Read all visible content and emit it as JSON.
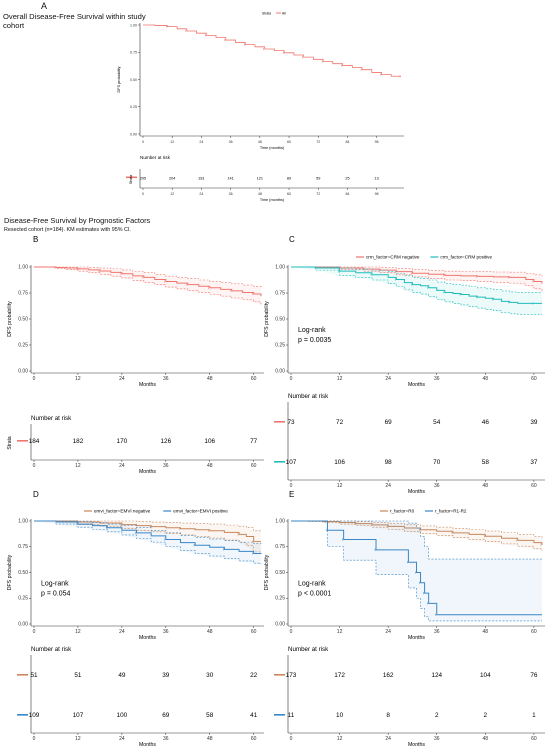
{
  "header": {
    "panel_a_letter": "A",
    "panel_a_title_line1": "Overall Disease-Free Survival within study",
    "panel_a_title_line2": "cohort",
    "section_title": "Disease-Free Survival by Prognostic Factors",
    "section_subtitle": "Resected cohort (n=184). KM estimates with 95% CI."
  },
  "colors": {
    "salmon": "#f0756d",
    "teal": "#1fbcbc",
    "brown": "#c8875e",
    "blue": "#3a86c6",
    "axis": "#333333",
    "grid": "#000000"
  },
  "chart_data": [
    {
      "panel": "A",
      "type": "line",
      "legend_title": "Strata",
      "legend_position": "top",
      "xlabel": "Time (months)",
      "ylabel": "DFS probability",
      "xlim": [
        0,
        106
      ],
      "ylim": [
        0,
        1
      ],
      "xticks": [
        "0",
        "12",
        "24",
        "36",
        "48",
        "60",
        "72",
        "84",
        "96"
      ],
      "yticks": [
        "0.00",
        "0.25",
        "0.50",
        "0.75",
        "1.00"
      ],
      "series": [
        {
          "name": "All",
          "color": "salmon",
          "x": [
            0,
            5,
            10,
            14,
            18,
            22,
            26,
            30,
            34,
            38,
            42,
            46,
            50,
            54,
            58,
            62,
            66,
            70,
            74,
            78,
            82,
            86,
            90,
            94,
            98,
            102,
            106
          ],
          "y": [
            1.0,
            0.995,
            0.985,
            0.965,
            0.945,
            0.925,
            0.905,
            0.885,
            0.862,
            0.84,
            0.82,
            0.8,
            0.78,
            0.765,
            0.745,
            0.725,
            0.705,
            0.685,
            0.665,
            0.645,
            0.628,
            0.61,
            0.59,
            0.565,
            0.545,
            0.53,
            0.53
          ]
        }
      ],
      "risk_table": {
        "title": "Number at risk",
        "ylabel": "Strata",
        "xlabel": "Time (months)",
        "rows": [
          {
            "color": "salmon",
            "values": [
              "205",
              "204",
              "181",
              "141",
              "121",
              "89",
              "59",
              "25",
              "13"
            ]
          }
        ]
      }
    },
    {
      "panel": "B",
      "type": "line",
      "xlabel": "Months",
      "ylabel": "DFS probability",
      "xlim": [
        0,
        62
      ],
      "ylim": [
        0,
        1
      ],
      "xticks": [
        "0",
        "12",
        "24",
        "36",
        "48",
        "60"
      ],
      "yticks": [
        "0.00",
        "0.25",
        "0.50",
        "0.75",
        "1.00"
      ],
      "series": [
        {
          "color": "salmon",
          "x": [
            0,
            3,
            6,
            9,
            12,
            15,
            18,
            21,
            24,
            27,
            30,
            33,
            36,
            39,
            42,
            45,
            48,
            51,
            54,
            57,
            60,
            62
          ],
          "y": [
            1.0,
            1.0,
            0.995,
            0.99,
            0.982,
            0.972,
            0.962,
            0.948,
            0.935,
            0.915,
            0.9,
            0.88,
            0.86,
            0.845,
            0.83,
            0.815,
            0.8,
            0.785,
            0.77,
            0.755,
            0.74,
            0.72
          ],
          "ci_lower": [
            1.0,
            1.0,
            0.985,
            0.975,
            0.96,
            0.945,
            0.93,
            0.912,
            0.895,
            0.872,
            0.852,
            0.83,
            0.807,
            0.79,
            0.772,
            0.755,
            0.738,
            0.72,
            0.702,
            0.685,
            0.665,
            0.64
          ],
          "ci_upper": [
            1.0,
            1.0,
            1.0,
            1.0,
            1.0,
            0.995,
            0.99,
            0.982,
            0.972,
            0.958,
            0.945,
            0.93,
            0.912,
            0.9,
            0.888,
            0.875,
            0.862,
            0.85,
            0.838,
            0.826,
            0.814,
            0.8
          ]
        }
      ],
      "risk_table": {
        "title": "Number at risk",
        "ylabel": "Strata",
        "rows": [
          {
            "color": "salmon",
            "values": [
              "184",
              "182",
              "170",
              "126",
              "106",
              "77"
            ]
          }
        ]
      }
    },
    {
      "panel": "C",
      "type": "line",
      "legend_position": "top",
      "xlabel": "Months",
      "ylabel": "DFS probability",
      "xlim": [
        0,
        62
      ],
      "ylim": [
        0,
        1
      ],
      "xticks": [
        "0",
        "12",
        "24",
        "36",
        "48",
        "60"
      ],
      "yticks": [
        "0.00",
        "0.25",
        "0.50",
        "0.75",
        "1.00"
      ],
      "annotation": [
        "Log-rank",
        "p = 0.0035"
      ],
      "series": [
        {
          "name": "crm_factor=CRM negative",
          "color": "salmon",
          "x": [
            0,
            6,
            12,
            18,
            22,
            26,
            30,
            34,
            38,
            42,
            46,
            50,
            54,
            58,
            60,
            62
          ],
          "y": [
            1.0,
            1.0,
            0.99,
            0.98,
            0.97,
            0.955,
            0.94,
            0.93,
            0.92,
            0.915,
            0.91,
            0.905,
            0.9,
            0.88,
            0.86,
            0.84
          ],
          "ci_lower": [
            1.0,
            0.99,
            0.975,
            0.96,
            0.945,
            0.925,
            0.905,
            0.89,
            0.875,
            0.868,
            0.86,
            0.852,
            0.845,
            0.82,
            0.79,
            0.76
          ],
          "ci_upper": [
            1.0,
            1.0,
            1.0,
            1.0,
            0.995,
            0.985,
            0.975,
            0.968,
            0.96,
            0.958,
            0.955,
            0.952,
            0.95,
            0.94,
            0.925,
            0.91
          ]
        },
        {
          "name": "crm_factor=CRM positive",
          "color": "teal",
          "x": [
            0,
            6,
            12,
            16,
            20,
            24,
            26,
            28,
            30,
            32,
            34,
            36,
            38,
            40,
            42,
            44,
            46,
            48,
            50,
            52,
            54,
            56,
            60,
            62
          ],
          "y": [
            1.0,
            0.99,
            0.96,
            0.945,
            0.925,
            0.9,
            0.88,
            0.85,
            0.83,
            0.82,
            0.8,
            0.775,
            0.755,
            0.745,
            0.735,
            0.72,
            0.71,
            0.7,
            0.69,
            0.67,
            0.66,
            0.65,
            0.65,
            0.65
          ],
          "ci_lower": [
            1.0,
            0.97,
            0.92,
            0.9,
            0.875,
            0.84,
            0.815,
            0.78,
            0.755,
            0.74,
            0.715,
            0.69,
            0.665,
            0.65,
            0.635,
            0.62,
            0.605,
            0.59,
            0.58,
            0.56,
            0.55,
            0.545,
            0.545,
            0.545
          ],
          "ci_upper": [
            1.0,
            1.0,
            0.99,
            0.98,
            0.97,
            0.955,
            0.94,
            0.915,
            0.9,
            0.89,
            0.875,
            0.855,
            0.84,
            0.83,
            0.825,
            0.81,
            0.8,
            0.79,
            0.785,
            0.77,
            0.76,
            0.755,
            0.755,
            0.755
          ]
        }
      ],
      "risk_table": {
        "title": "Number at risk",
        "rows": [
          {
            "color": "salmon",
            "values": [
              "73",
              "72",
              "69",
              "54",
              "46",
              "39"
            ]
          },
          {
            "color": "teal",
            "values": [
              "107",
              "106",
              "98",
              "70",
              "58",
              "37"
            ]
          }
        ]
      }
    },
    {
      "panel": "D",
      "type": "line",
      "legend_position": "top",
      "xlabel": "Months",
      "ylabel": "DFS probability",
      "xlim": [
        0,
        62
      ],
      "ylim": [
        0,
        1
      ],
      "xticks": [
        "0",
        "12",
        "24",
        "36",
        "48",
        "60"
      ],
      "yticks": [
        "0.00",
        "0.25",
        "0.50",
        "0.75",
        "1.00"
      ],
      "annotation": [
        "Log-rank",
        "p = 0.054"
      ],
      "series": [
        {
          "name": "emvi_factor=EMVI negative",
          "color": "brown",
          "x": [
            0,
            6,
            12,
            18,
            24,
            28,
            32,
            36,
            40,
            44,
            48,
            52,
            56,
            58,
            60,
            62
          ],
          "y": [
            1.0,
            1.0,
            0.99,
            0.98,
            0.965,
            0.955,
            0.945,
            0.935,
            0.925,
            0.915,
            0.905,
            0.89,
            0.87,
            0.85,
            0.8,
            0.8
          ],
          "ci_lower": [
            1.0,
            0.99,
            0.965,
            0.95,
            0.925,
            0.91,
            0.895,
            0.88,
            0.865,
            0.85,
            0.835,
            0.815,
            0.79,
            0.76,
            0.7,
            0.7
          ],
          "ci_upper": [
            1.0,
            1.0,
            1.0,
            1.0,
            1.0,
            0.995,
            0.99,
            0.985,
            0.98,
            0.975,
            0.97,
            0.96,
            0.95,
            0.935,
            0.905,
            0.905
          ]
        },
        {
          "name": "emvi_factor=EMVI positive",
          "color": "blue",
          "x": [
            0,
            6,
            12,
            16,
            20,
            24,
            28,
            32,
            36,
            40,
            44,
            48,
            52,
            56,
            60,
            62
          ],
          "y": [
            1.0,
            0.99,
            0.97,
            0.955,
            0.935,
            0.91,
            0.885,
            0.855,
            0.82,
            0.79,
            0.765,
            0.745,
            0.725,
            0.705,
            0.685,
            0.68
          ],
          "ci_lower": [
            1.0,
            0.97,
            0.94,
            0.92,
            0.895,
            0.865,
            0.83,
            0.795,
            0.75,
            0.715,
            0.685,
            0.66,
            0.635,
            0.612,
            0.59,
            0.58
          ],
          "ci_upper": [
            1.0,
            1.0,
            0.995,
            0.985,
            0.97,
            0.955,
            0.935,
            0.91,
            0.885,
            0.86,
            0.84,
            0.825,
            0.81,
            0.795,
            0.78,
            0.775
          ]
        }
      ],
      "risk_table": {
        "title": "Number at risk",
        "rows": [
          {
            "color": "brown",
            "values": [
              "51",
              "51",
              "49",
              "39",
              "30",
              "22"
            ]
          },
          {
            "color": "blue",
            "values": [
              "109",
              "107",
              "100",
              "69",
              "58",
              "41"
            ]
          }
        ]
      }
    },
    {
      "panel": "E",
      "type": "line",
      "legend_position": "top",
      "xlabel": "Months",
      "ylabel": "DFS probability",
      "xlim": [
        0,
        62
      ],
      "ylim": [
        0,
        1
      ],
      "xticks": [
        "0",
        "12",
        "24",
        "36",
        "48",
        "60"
      ],
      "yticks": [
        "0.00",
        "0.25",
        "0.50",
        "0.75",
        "1.00"
      ],
      "annotation": [
        "Log-rank",
        "p < 0.0001"
      ],
      "series": [
        {
          "name": "r_factor=R0",
          "color": "brown",
          "x": [
            0,
            4,
            8,
            12,
            16,
            20,
            24,
            28,
            32,
            36,
            40,
            44,
            48,
            52,
            56,
            60,
            62
          ],
          "y": [
            1.0,
            1.0,
            0.995,
            0.985,
            0.975,
            0.962,
            0.948,
            0.932,
            0.915,
            0.9,
            0.885,
            0.87,
            0.852,
            0.832,
            0.812,
            0.79,
            0.77
          ],
          "ci_lower": [
            1.0,
            0.995,
            0.985,
            0.97,
            0.955,
            0.94,
            0.92,
            0.9,
            0.88,
            0.86,
            0.84,
            0.822,
            0.8,
            0.778,
            0.755,
            0.73,
            0.71
          ],
          "ci_upper": [
            1.0,
            1.0,
            1.0,
            1.0,
            0.995,
            0.985,
            0.975,
            0.965,
            0.952,
            0.94,
            0.928,
            0.915,
            0.902,
            0.886,
            0.87,
            0.85,
            0.835
          ]
        },
        {
          "name": "r_factor=R1-R2",
          "color": "blue",
          "x": [
            0,
            9,
            9,
            13,
            13,
            21,
            21,
            29,
            29,
            31,
            31,
            32,
            32,
            33,
            33,
            34,
            34,
            36,
            36,
            62
          ],
          "y": [
            1.0,
            1.0,
            0.91,
            0.91,
            0.82,
            0.82,
            0.72,
            0.72,
            0.6,
            0.6,
            0.5,
            0.5,
            0.4,
            0.4,
            0.3,
            0.3,
            0.2,
            0.2,
            0.09,
            0.09
          ],
          "ci_lower": [
            1.0,
            1.0,
            0.75,
            0.75,
            0.62,
            0.62,
            0.48,
            0.48,
            0.35,
            0.35,
            0.25,
            0.25,
            0.15,
            0.15,
            0.07,
            0.07,
            0.03,
            0.03,
            0.03,
            0.03
          ],
          "ci_upper": [
            1.0,
            1.0,
            1.0,
            1.0,
            1.0,
            1.0,
            1.0,
            1.0,
            0.98,
            0.98,
            0.93,
            0.93,
            0.85,
            0.85,
            0.75,
            0.75,
            0.63,
            0.63,
            0.63,
            0.63
          ]
        }
      ],
      "risk_table": {
        "title": "Number at risk",
        "rows": [
          {
            "color": "brown",
            "values": [
              "173",
              "172",
              "162",
              "124",
              "104",
              "76"
            ]
          },
          {
            "color": "blue",
            "values": [
              "11",
              "10",
              "8",
              "2",
              "2",
              "1"
            ]
          }
        ]
      }
    }
  ]
}
